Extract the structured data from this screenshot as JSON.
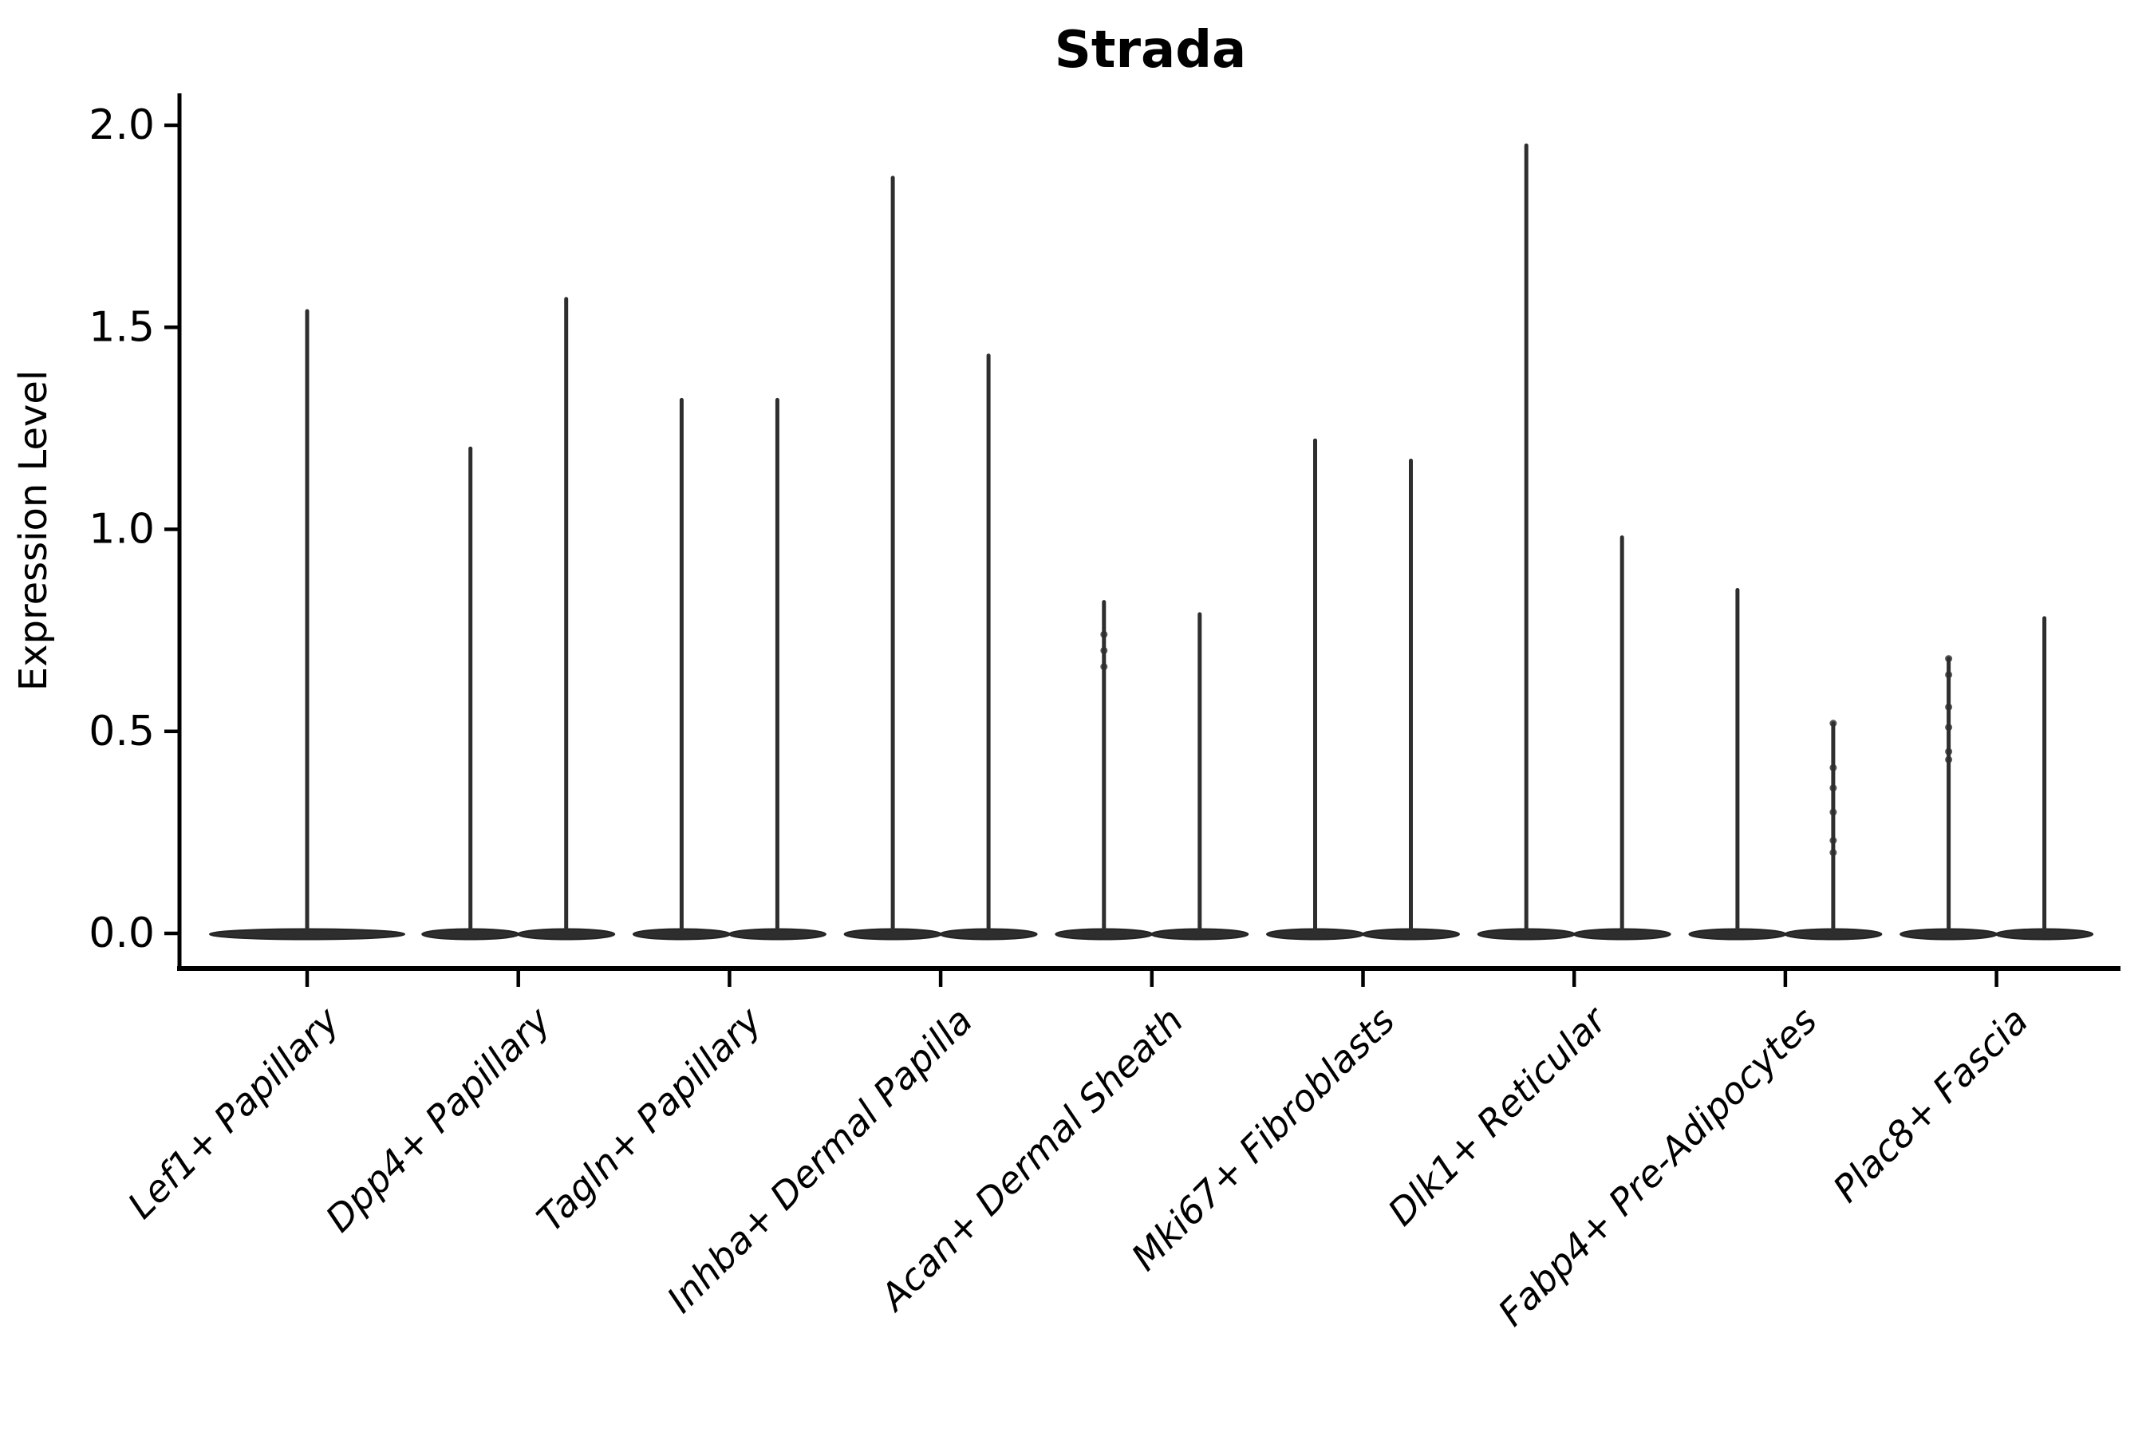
{
  "page": {
    "background": "#ffffff"
  },
  "chart_data": {
    "type": "violin",
    "title": "Strada",
    "ylabel": "Expression Level",
    "xlabel": "",
    "ylim": [
      -0.09,
      2.07
    ],
    "yticks": {
      "values": [
        0.0,
        0.5,
        1.0,
        1.5,
        2.0
      ],
      "labels": [
        "0.0",
        "0.5",
        "1.0",
        "1.5",
        "2.0"
      ]
    },
    "grid": false,
    "legend": "none",
    "shape_hint": "flat-base-with-max-spike",
    "colors": {
      "violin_fill": "#2e2e2e",
      "violin_edge": "#232323",
      "axis": "#000000",
      "text": "#000000"
    },
    "categories": [
      {
        "label": "Lef1+ Papillary",
        "violins": [
          {
            "max": 1.54,
            "jitter": []
          }
        ]
      },
      {
        "label": "Dpp4+ Papillary",
        "violins": [
          {
            "max": 1.2,
            "jitter": []
          },
          {
            "max": 1.57,
            "jitter": []
          }
        ]
      },
      {
        "label": "Tagln+ Papillary",
        "violins": [
          {
            "max": 1.32,
            "jitter": []
          },
          {
            "max": 1.32,
            "jitter": []
          }
        ]
      },
      {
        "label": "Inhba+ Dermal Papilla",
        "violins": [
          {
            "max": 1.87,
            "jitter": []
          },
          {
            "max": 1.43,
            "jitter": []
          }
        ]
      },
      {
        "label": "Acan+ Dermal Sheath",
        "violins": [
          {
            "max": 0.82,
            "jitter": [
              0.74,
              0.7,
              0.66
            ]
          },
          {
            "max": 0.79,
            "jitter": []
          }
        ]
      },
      {
        "label": "Mki67+ Fibroblasts",
        "violins": [
          {
            "max": 1.22,
            "jitter": []
          },
          {
            "max": 1.17,
            "jitter": []
          }
        ]
      },
      {
        "label": "Dlk1+ Reticular",
        "violins": [
          {
            "max": 1.95,
            "jitter": []
          },
          {
            "max": 0.98,
            "jitter": []
          }
        ]
      },
      {
        "label": "Fabp4+ Pre-Adipocytes",
        "violins": [
          {
            "max": 0.85,
            "jitter": []
          },
          {
            "max": 0.52,
            "jitter": [
              0.52,
              0.41,
              0.36,
              0.3,
              0.23,
              0.2
            ]
          }
        ]
      },
      {
        "label": "Plac8+ Fascia",
        "violins": [
          {
            "max": 0.68,
            "jitter": [
              0.68,
              0.64,
              0.56,
              0.51,
              0.45,
              0.43
            ]
          },
          {
            "max": 0.78,
            "jitter": []
          }
        ]
      }
    ]
  }
}
